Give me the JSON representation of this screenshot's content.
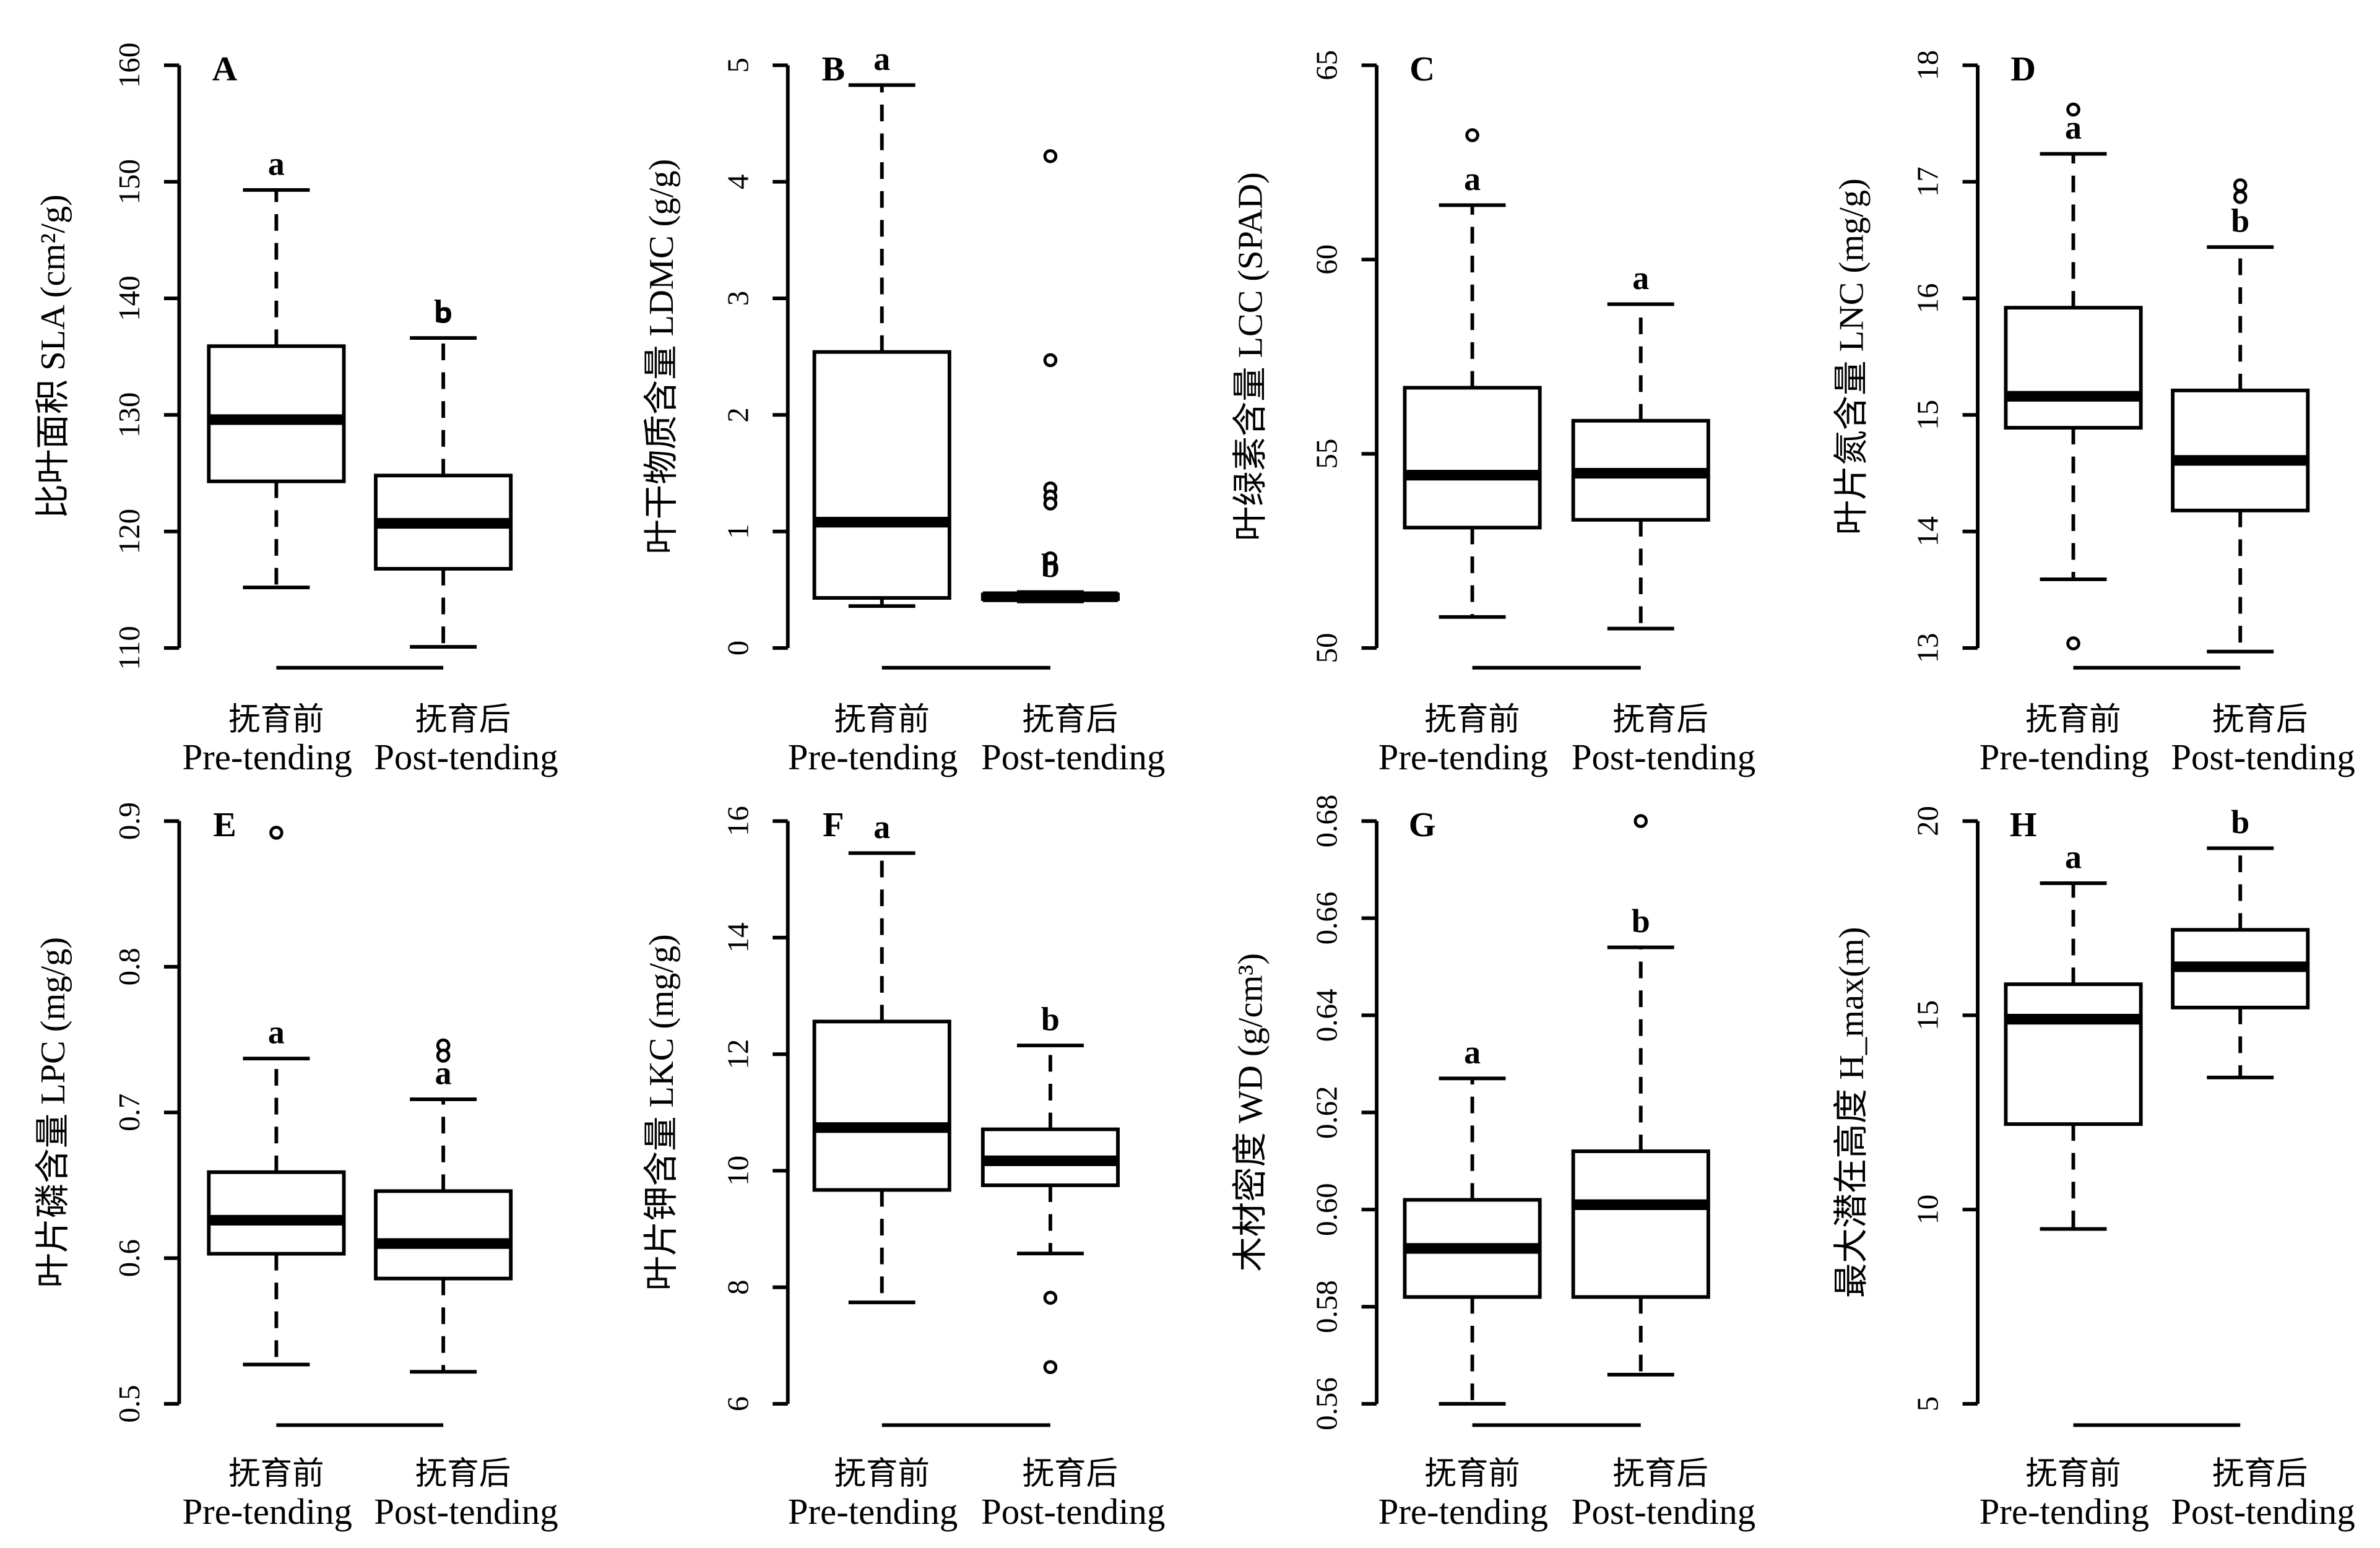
{
  "chart_data": [
    {
      "type": "box",
      "panel_label": "A",
      "ylabel": "比叶面积 SLA (cm²/g)",
      "ylim": [
        110,
        160
      ],
      "yticks": [
        "110",
        "120",
        "130",
        "140",
        "150",
        "160"
      ],
      "categories": [
        {
          "zh": "抚育前",
          "en": "Pre-tending"
        },
        {
          "zh": "抚育后",
          "en": "Post-tending"
        }
      ],
      "boxes": [
        {
          "min": 115.2,
          "q1": 124.3,
          "median": 129.6,
          "q3": 135.9,
          "max": 149.3,
          "outliers": [],
          "letter": "a"
        },
        {
          "min": 110.1,
          "q1": 116.8,
          "median": 120.7,
          "q3": 124.8,
          "max": 136.6,
          "outliers": [
            138.6
          ],
          "letter": "b"
        }
      ]
    },
    {
      "type": "box",
      "panel_label": "B",
      "ylabel": "叶干物质含量 LDMC (g/g)",
      "ylim": [
        0,
        5
      ],
      "yticks": [
        "0",
        "1",
        "2",
        "3",
        "4",
        "5"
      ],
      "categories": [
        {
          "zh": "抚育前",
          "en": "Pre-tending"
        },
        {
          "zh": "抚育后",
          "en": "Post-tending"
        }
      ],
      "boxes": [
        {
          "min": 0.36,
          "q1": 0.43,
          "median": 1.08,
          "q3": 2.54,
          "max": 4.83,
          "outliers": [],
          "letter": "a"
        },
        {
          "min": 0.4,
          "q1": 0.42,
          "median": 0.44,
          "q3": 0.46,
          "max": 0.48,
          "outliers": [
            4.22,
            2.47,
            1.37,
            1.3,
            1.24,
            0.77
          ],
          "letter": "b"
        }
      ]
    },
    {
      "type": "box",
      "panel_label": "C",
      "ylabel": "叶绿素含量 LCC (SPAD)",
      "ylim": [
        50,
        65
      ],
      "yticks": [
        "50",
        "55",
        "60",
        "65"
      ],
      "categories": [
        {
          "zh": "抚育前",
          "en": "Pre-tending"
        },
        {
          "zh": "抚育后",
          "en": "Post-tending"
        }
      ],
      "boxes": [
        {
          "min": 50.8,
          "q1": 53.1,
          "median": 54.45,
          "q3": 56.7,
          "max": 61.4,
          "outliers": [
            63.2
          ],
          "letter": "a"
        },
        {
          "min": 50.5,
          "q1": 53.3,
          "median": 54.5,
          "q3": 55.85,
          "max": 58.85,
          "outliers": [],
          "letter": "a"
        }
      ]
    },
    {
      "type": "box",
      "panel_label": "D",
      "ylabel": "叶片氮含量 LNC (mg/g)",
      "ylim": [
        13,
        18
      ],
      "yticks": [
        "13",
        "14",
        "15",
        "16",
        "17",
        "18"
      ],
      "categories": [
        {
          "zh": "抚育前",
          "en": "Pre-tending"
        },
        {
          "zh": "抚育后",
          "en": "Post-tending"
        }
      ],
      "boxes": [
        {
          "min": 13.59,
          "q1": 14.89,
          "median": 15.16,
          "q3": 15.92,
          "max": 17.24,
          "outliers": [
            17.62,
            13.04
          ],
          "letter": "a"
        },
        {
          "min": 12.97,
          "q1": 14.18,
          "median": 14.61,
          "q3": 15.21,
          "max": 16.44,
          "outliers": [
            16.97,
            16.87
          ],
          "letter": "b"
        }
      ]
    },
    {
      "type": "box",
      "panel_label": "E",
      "ylabel": "叶片磷含量 LPC (mg/g)",
      "ylim": [
        0.5,
        0.9
      ],
      "yticks": [
        "0.5",
        "0.6",
        "0.7",
        "0.8",
        "0.9"
      ],
      "categories": [
        {
          "zh": "抚育前",
          "en": "Pre-tending"
        },
        {
          "zh": "抚育后",
          "en": "Post-tending"
        }
      ],
      "boxes": [
        {
          "min": 0.527,
          "q1": 0.603,
          "median": 0.626,
          "q3": 0.659,
          "max": 0.737,
          "outliers": [
            0.892
          ],
          "letter": "a"
        },
        {
          "min": 0.522,
          "q1": 0.586,
          "median": 0.61,
          "q3": 0.646,
          "max": 0.709,
          "outliers": [
            0.746,
            0.739
          ],
          "letter": "a"
        }
      ]
    },
    {
      "type": "box",
      "panel_label": "F",
      "ylabel": "叶片钾含量 LKC (mg/g)",
      "ylim": [
        6,
        16
      ],
      "yticks": [
        "6",
        "8",
        "10",
        "12",
        "14",
        "16"
      ],
      "categories": [
        {
          "zh": "抚育前",
          "en": "Pre-tending"
        },
        {
          "zh": "抚育后",
          "en": "Post-tending"
        }
      ],
      "boxes": [
        {
          "min": 7.74,
          "q1": 9.67,
          "median": 10.74,
          "q3": 12.56,
          "max": 15.45,
          "outliers": [],
          "letter": "a"
        },
        {
          "min": 8.58,
          "q1": 9.75,
          "median": 10.17,
          "q3": 10.71,
          "max": 12.15,
          "outliers": [
            7.82,
            6.63
          ],
          "letter": "b"
        }
      ]
    },
    {
      "type": "box",
      "panel_label": "G",
      "ylabel": "木材密度 WD (g/cm³)",
      "ylim": [
        0.56,
        0.68
      ],
      "yticks": [
        "0.56",
        "0.58",
        "0.60",
        "0.62",
        "0.64",
        "0.66",
        "0.68"
      ],
      "categories": [
        {
          "zh": "抚育前",
          "en": "Pre-tending"
        },
        {
          "zh": "抚育后",
          "en": "Post-tending"
        }
      ],
      "boxes": [
        {
          "min": 0.56,
          "q1": 0.582,
          "median": 0.592,
          "q3": 0.602,
          "max": 0.627,
          "outliers": [],
          "letter": "a"
        },
        {
          "min": 0.566,
          "q1": 0.582,
          "median": 0.601,
          "q3": 0.612,
          "max": 0.654,
          "outliers": [
            0.68
          ],
          "letter": "b"
        }
      ]
    },
    {
      "type": "box",
      "panel_label": "H",
      "ylabel": "最大潜在高度 H_max(m)",
      "ylim": [
        5,
        20
      ],
      "yticks": [
        "5",
        "10",
        "15",
        "20"
      ],
      "categories": [
        {
          "zh": "抚育前",
          "en": "Pre-tending"
        },
        {
          "zh": "抚育后",
          "en": "Post-tending"
        }
      ],
      "boxes": [
        {
          "min": 9.5,
          "q1": 12.2,
          "median": 14.9,
          "q3": 15.8,
          "max": 18.4,
          "outliers": [],
          "letter": "a"
        },
        {
          "min": 13.4,
          "q1": 15.2,
          "median": 16.25,
          "q3": 17.2,
          "max": 19.3,
          "outliers": [],
          "letter": "b"
        }
      ]
    }
  ]
}
